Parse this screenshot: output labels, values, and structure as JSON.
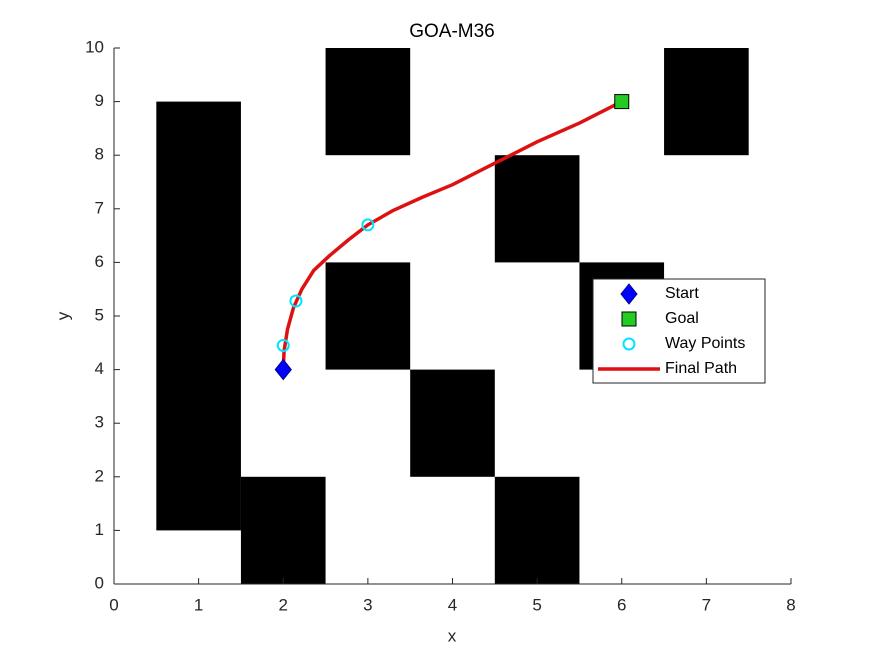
{
  "chart_data": {
    "type": "path-plan",
    "title": "GOA-M36",
    "xlabel": "x",
    "ylabel": "y",
    "xlim": [
      0,
      8
    ],
    "ylim": [
      0,
      10
    ],
    "xticks": [
      0,
      1,
      2,
      3,
      4,
      5,
      6,
      7,
      8
    ],
    "yticks": [
      0,
      1,
      2,
      3,
      4,
      5,
      6,
      7,
      8,
      9,
      10
    ],
    "obstacles": {
      "color": "#000000",
      "rects": [
        [
          0.5,
          1,
          1.5,
          9
        ],
        [
          1.5,
          0,
          2.5,
          2
        ],
        [
          2.5,
          8,
          3.5,
          10
        ],
        [
          2.5,
          4,
          3.5,
          6
        ],
        [
          3.5,
          2,
          4.5,
          4
        ],
        [
          4.5,
          6,
          5.5,
          8
        ],
        [
          4.5,
          0,
          5.5,
          2
        ],
        [
          5.5,
          4,
          6.5,
          6
        ],
        [
          6.5,
          8,
          7.5,
          10
        ]
      ]
    },
    "legend": "east",
    "series": [
      {
        "name": "Final Path",
        "color": "#dd1111",
        "marker": "line",
        "x": [
          2,
          2.01,
          2.05,
          2.12,
          2.22,
          2.36,
          2.55,
          2.77,
          3,
          3.3,
          3.65,
          4,
          4.5,
          5,
          5.5,
          6
        ],
        "values": [
          4,
          4.35,
          4.75,
          5.15,
          5.5,
          5.85,
          6.13,
          6.42,
          6.7,
          6.97,
          7.22,
          7.45,
          7.85,
          8.25,
          8.6,
          9
        ]
      },
      {
        "name": "Start",
        "color": "#0000ff",
        "marker": "diamond",
        "x": [
          2
        ],
        "values": [
          4
        ]
      },
      {
        "name": "Goal",
        "color": "#22cc22",
        "marker": "square",
        "x": [
          6
        ],
        "values": [
          9
        ]
      },
      {
        "name": "Way Points",
        "color": "#00e5ff",
        "marker": "circle",
        "x": [
          2,
          2.15,
          3
        ],
        "values": [
          4.45,
          5.28,
          6.7
        ]
      }
    ]
  }
}
